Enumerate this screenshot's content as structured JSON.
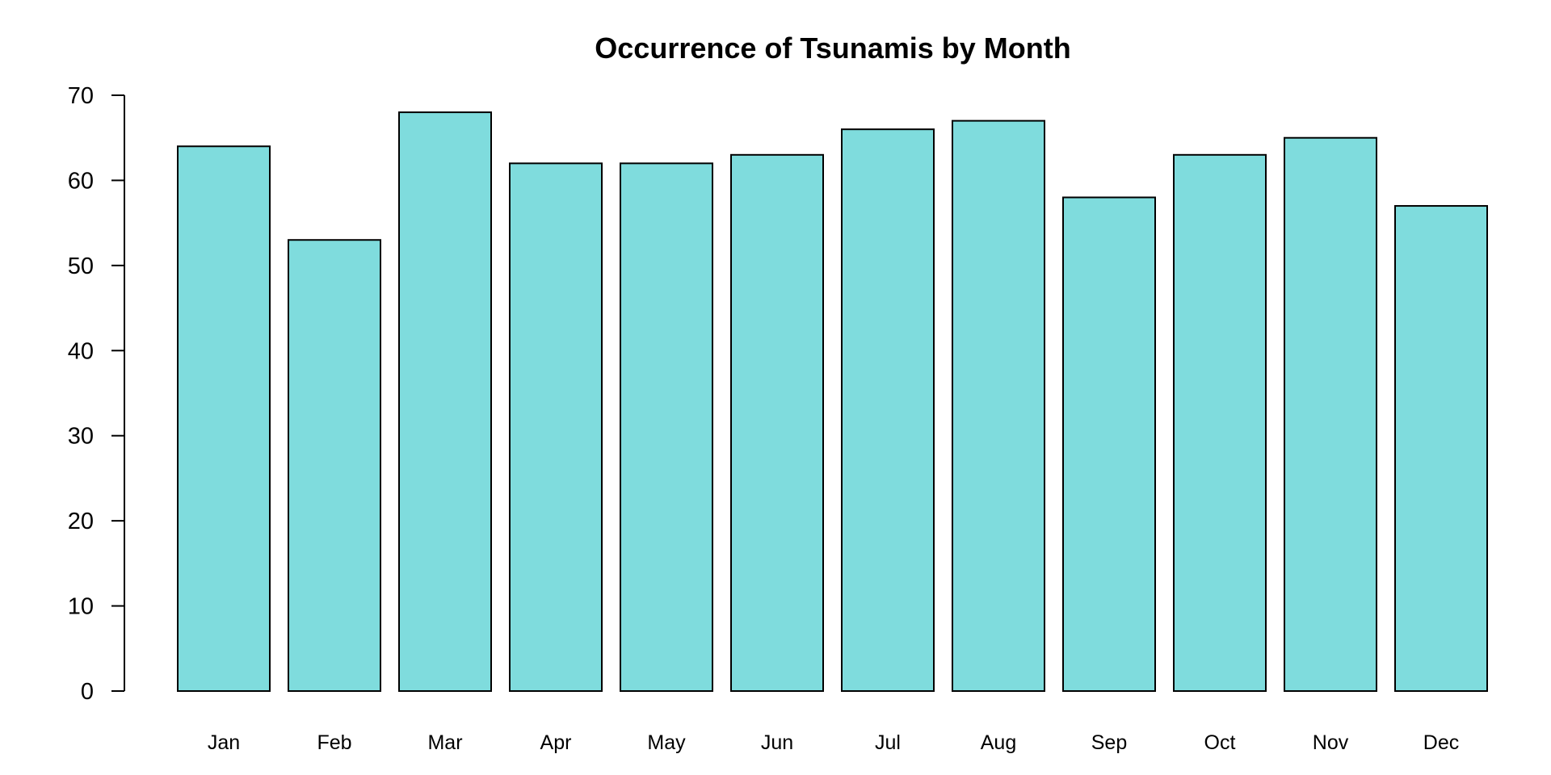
{
  "chart_data": {
    "type": "bar",
    "title": "Occurrence of Tsunamis by Month",
    "xlabel": "",
    "ylabel": "",
    "categories": [
      "Jan",
      "Feb",
      "Mar",
      "Apr",
      "May",
      "Jun",
      "Jul",
      "Aug",
      "Sep",
      "Oct",
      "Nov",
      "Dec"
    ],
    "values": [
      64,
      53,
      68,
      62,
      62,
      63,
      66,
      67,
      58,
      63,
      65,
      57
    ],
    "ylim": [
      0,
      70
    ],
    "yticks": [
      0,
      10,
      20,
      30,
      40,
      50,
      60,
      70
    ],
    "grid": false,
    "legend": "none",
    "bar_color": "#7FDCDD",
    "bar_border_color": "#000000"
  }
}
